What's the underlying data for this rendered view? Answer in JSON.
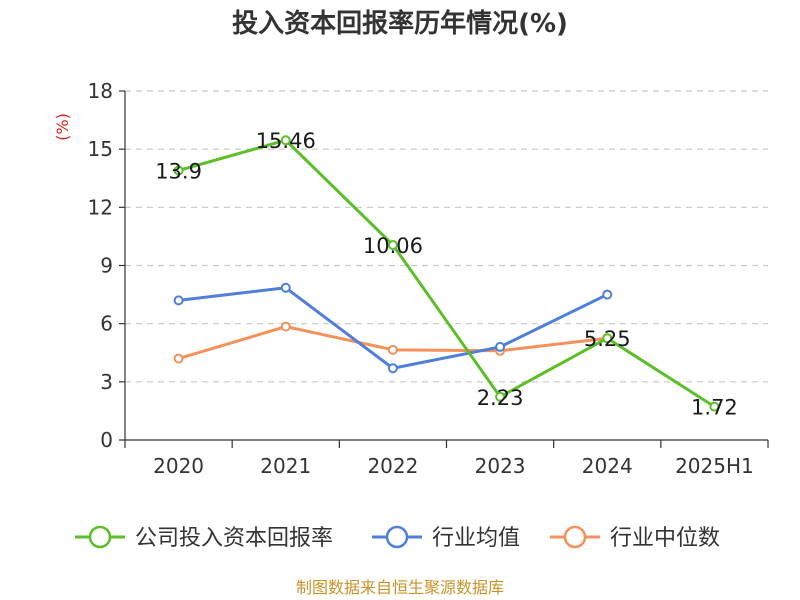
{
  "chart_data": {
    "type": "line",
    "title": "投入资本回报率历年情况(%)",
    "unit_label": "(%)",
    "categories": [
      "2020",
      "2021",
      "2022",
      "2023",
      "2024",
      "2025H1"
    ],
    "ylim": [
      0,
      18
    ],
    "yticks": [
      0,
      3,
      6,
      9,
      12,
      15,
      18
    ],
    "grid": true,
    "legend_position": "bottom",
    "series": [
      {
        "name": "公司投入资本回报率",
        "color": "#5cbf2a",
        "values": [
          13.9,
          15.46,
          10.06,
          2.23,
          5.25,
          1.72
        ],
        "labels": [
          "13.9",
          "15.46",
          "10.06",
          "2.23",
          "5.25",
          "1.72"
        ]
      },
      {
        "name": "行业均值",
        "color": "#4f7fd8",
        "values": [
          7.2,
          7.85,
          3.7,
          4.8,
          7.5,
          null
        ]
      },
      {
        "name": "行业中位数",
        "color": "#f4915a",
        "values": [
          4.2,
          5.85,
          4.65,
          4.6,
          5.25,
          null
        ]
      }
    ]
  },
  "source": "制图数据来自恒生聚源数据库"
}
